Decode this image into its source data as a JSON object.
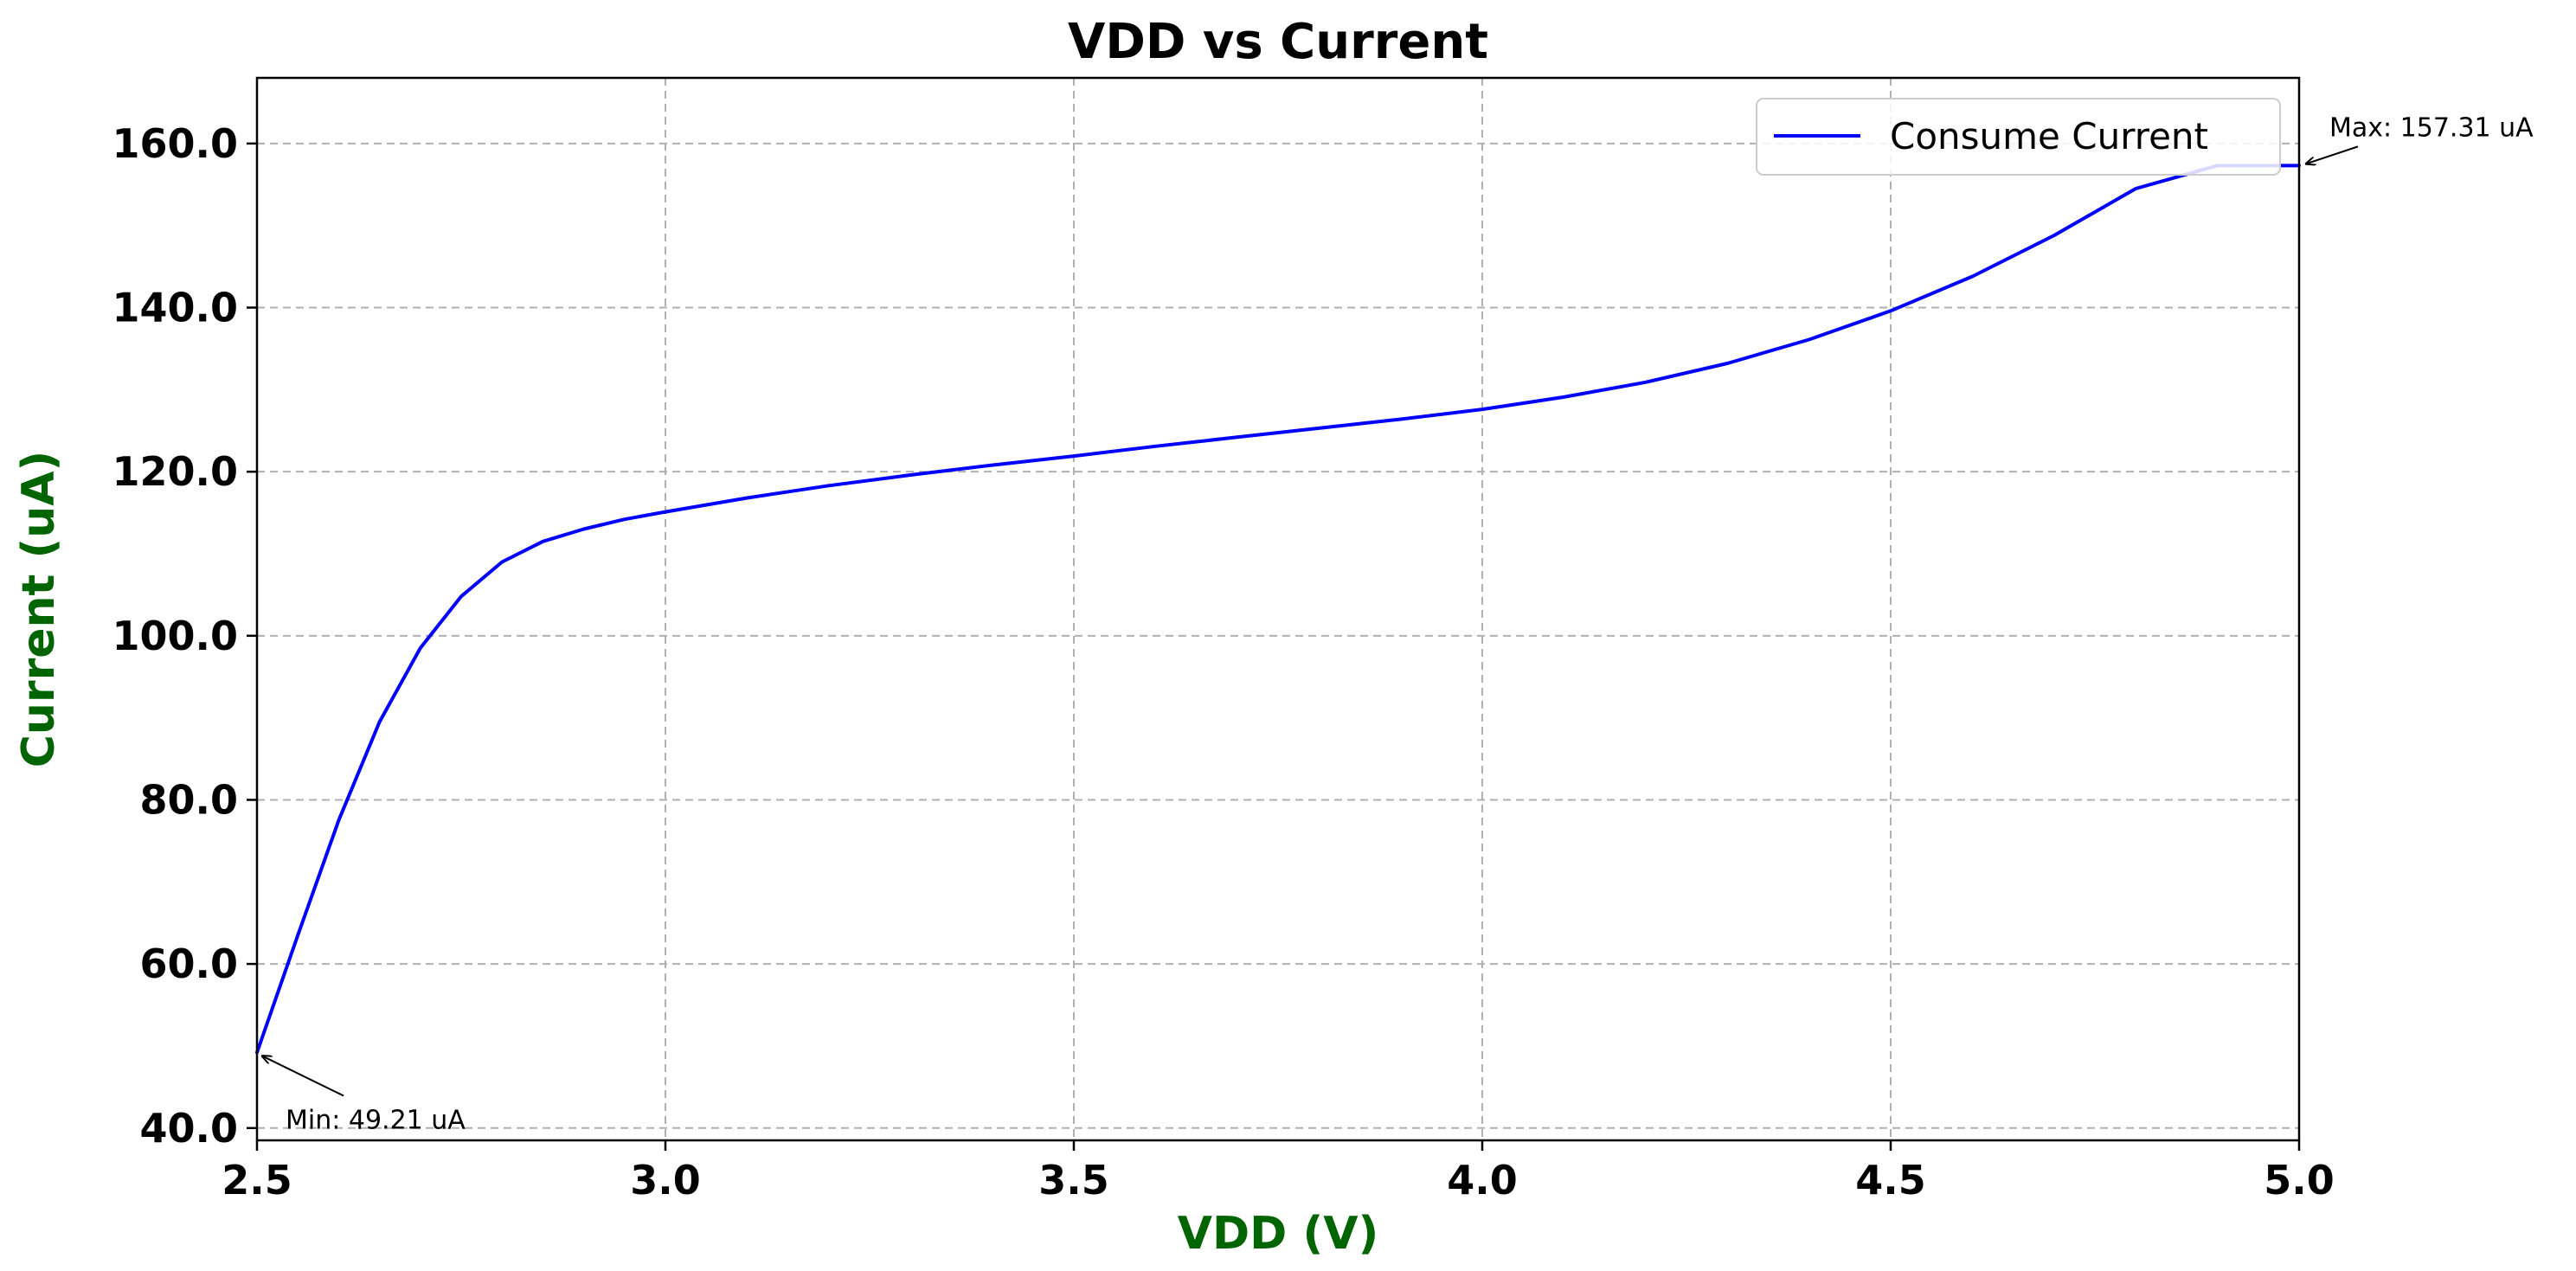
{
  "chart_data": {
    "type": "line",
    "title": "VDD vs Current",
    "xlabel": "VDD (V)",
    "ylabel": "Current (uA)",
    "label_color": "#006400",
    "xlim": [
      2.5,
      5.0
    ],
    "ylim": [
      38.5,
      168.0
    ],
    "xticks": [
      2.5,
      3.0,
      3.5,
      4.0,
      4.5,
      5.0
    ],
    "xtick_labels": [
      "2.5",
      "3.0",
      "3.5",
      "4.0",
      "4.5",
      "5.0"
    ],
    "yticks": [
      40,
      60,
      80,
      100,
      120,
      140,
      160
    ],
    "ytick_labels": [
      "40.0",
      "60.0",
      "80.0",
      "100.0",
      "120.0",
      "140.0",
      "160.0"
    ],
    "grid": true,
    "legend_position": "top-right",
    "series": [
      {
        "name": "Consume Current",
        "color": "#0000ff",
        "x": [
          2.5,
          2.55,
          2.6,
          2.65,
          2.7,
          2.75,
          2.8,
          2.85,
          2.9,
          2.95,
          3.0,
          3.1,
          3.2,
          3.3,
          3.4,
          3.5,
          3.6,
          3.7,
          3.8,
          3.9,
          4.0,
          4.1,
          4.2,
          4.3,
          4.4,
          4.5,
          4.6,
          4.7,
          4.8,
          4.9,
          5.0
        ],
        "y": [
          49.21,
          63.5,
          77.5,
          89.5,
          98.5,
          104.8,
          109.0,
          111.5,
          113.0,
          114.2,
          115.1,
          116.8,
          118.3,
          119.6,
          120.8,
          121.9,
          123.1,
          124.2,
          125.3,
          126.4,
          127.6,
          129.1,
          130.9,
          133.2,
          136.1,
          139.6,
          143.8,
          148.8,
          154.5,
          157.31,
          157.31
        ]
      }
    ],
    "annotations": [
      {
        "text": "Min: 49.21 uA",
        "x": 2.5,
        "y": 49.21,
        "placement": "below-right"
      },
      {
        "text": "Max: 157.31 uA",
        "x": 5.0,
        "y": 157.31,
        "placement": "above-right"
      }
    ]
  }
}
